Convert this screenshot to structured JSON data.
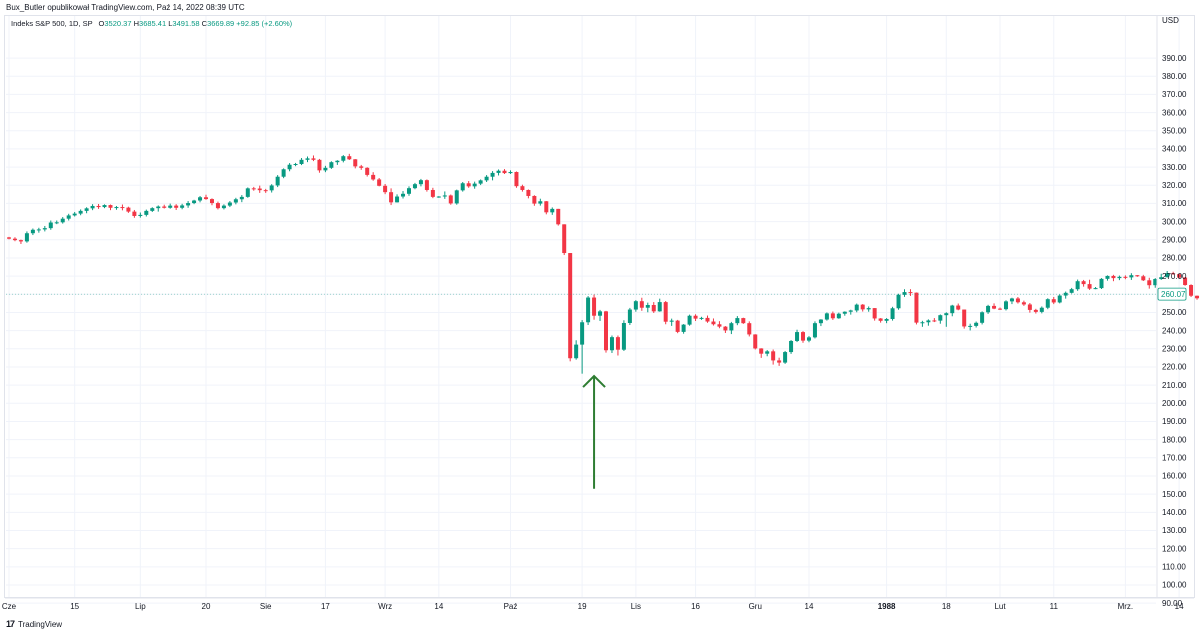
{
  "header": {
    "text": "Bux_Butler opublikował TradingView.com, Paź 14, 2022 08:39 UTC"
  },
  "legend": {
    "symbol": "Indeks S&P 500, 1D, SP",
    "o_label": "O",
    "o_value": "3520.37",
    "h_label": "H",
    "h_value": "3685.41",
    "l_label": "L",
    "l_value": "3491.58",
    "c_label": "C",
    "c_value": "3669.89",
    "change": "+92.85 (+2.60%)"
  },
  "footer": {
    "logo": "17",
    "brand": "TradingView"
  },
  "colors": {
    "up": "#089981",
    "down": "#f23645",
    "arrow": "#2e7d32",
    "grid": "#f0f3fa",
    "text": "#131722"
  },
  "chart_data": {
    "type": "candlestick",
    "y_axis": {
      "unit_label": "USD",
      "range": [
        80,
        395
      ],
      "ticks": [
        "390.00",
        "380.00",
        "370.00",
        "360.00",
        "350.00",
        "340.00",
        "330.00",
        "320.00",
        "310.00",
        "300.00",
        "290.00",
        "280.00",
        "270.00",
        "260.00",
        "250.00",
        "240.00",
        "230.00",
        "220.00",
        "210.00",
        "200.00",
        "190.00",
        "180.00",
        "170.00",
        "160.00",
        "150.00",
        "140.00",
        "130.00",
        "120.00",
        "110.00",
        "100.00",
        "90.00"
      ]
    },
    "x_axis": {
      "labels": [
        {
          "text": "Cze",
          "i": 0,
          "bold": false
        },
        {
          "text": "15",
          "i": 11,
          "bold": false
        },
        {
          "text": "Lip",
          "i": 22,
          "bold": false
        },
        {
          "text": "20",
          "i": 33,
          "bold": false
        },
        {
          "text": "Sie",
          "i": 43,
          "bold": false
        },
        {
          "text": "17",
          "i": 53,
          "bold": false
        },
        {
          "text": "Wrz",
          "i": 63,
          "bold": false
        },
        {
          "text": "14",
          "i": 72,
          "bold": false
        },
        {
          "text": "Paź",
          "i": 84,
          "bold": false
        },
        {
          "text": "19",
          "i": 96,
          "bold": false
        },
        {
          "text": "Lis",
          "i": 105,
          "bold": false
        },
        {
          "text": "16",
          "i": 115,
          "bold": false
        },
        {
          "text": "Gru",
          "i": 125,
          "bold": false
        },
        {
          "text": "14",
          "i": 134,
          "bold": false
        },
        {
          "text": "1988",
          "i": 147,
          "bold": true
        },
        {
          "text": "18",
          "i": 157,
          "bold": false
        },
        {
          "text": "Lut",
          "i": 166,
          "bold": false
        },
        {
          "text": "11",
          "i": 175,
          "bold": false
        },
        {
          "text": "Mrz.",
          "i": 187,
          "bold": false
        },
        {
          "text": "14",
          "i": 196,
          "bold": false
        }
      ]
    },
    "last_price": "260.07",
    "annotation": {
      "type": "arrow-up",
      "index": 98,
      "from_value": 153,
      "to_value": 215
    },
    "candles": [
      [
        291.3,
        291.6,
        290.2,
        290.6
      ],
      [
        290.6,
        291.4,
        289.2,
        289.8
      ],
      [
        289.8,
        290.1,
        287.7,
        289.1
      ],
      [
        289.1,
        294.6,
        288.4,
        293.6
      ],
      [
        293.6,
        296.2,
        292.6,
        295.5
      ],
      [
        295.5,
        296.6,
        293.9,
        295.7
      ],
      [
        295.7,
        297.6,
        294.6,
        296.4
      ],
      [
        296.4,
        300.6,
        295.5,
        299.5
      ],
      [
        299.5,
        300.6,
        298.6,
        299.6
      ],
      [
        299.6,
        302.5,
        298.9,
        301.6
      ],
      [
        301.6,
        304.3,
        300.6,
        303.4
      ],
      [
        303.4,
        305.3,
        302.8,
        304.4
      ],
      [
        304.4,
        306.7,
        303.5,
        305.9
      ],
      [
        305.9,
        307.9,
        304.6,
        307.3
      ],
      [
        307.3,
        309.6,
        306.3,
        308.6
      ],
      [
        308.6,
        309.7,
        307.0,
        308.0
      ],
      [
        308.0,
        309.5,
        307.4,
        309.1
      ],
      [
        309.1,
        309.4,
        306.3,
        307.6
      ],
      [
        307.6,
        308.6,
        306.5,
        308.0
      ],
      [
        308.0,
        309.4,
        306.2,
        307.7
      ],
      [
        307.7,
        308.2,
        304.8,
        305.5
      ],
      [
        305.5,
        306.4,
        302.1,
        303.1
      ],
      [
        303.1,
        305.0,
        302.2,
        303.7
      ],
      [
        303.7,
        306.6,
        302.8,
        305.9
      ],
      [
        305.9,
        307.9,
        305.3,
        307.4
      ],
      [
        307.4,
        308.9,
        305.5,
        308.3
      ],
      [
        308.3,
        309.3,
        307.2,
        307.6
      ],
      [
        307.6,
        309.9,
        307.1,
        308.8
      ],
      [
        308.8,
        309.6,
        306.4,
        307.6
      ],
      [
        307.6,
        309.8,
        306.8,
        308.9
      ],
      [
        308.9,
        311.3,
        307.6,
        310.2
      ],
      [
        310.2,
        312.0,
        309.6,
        311.6
      ],
      [
        311.6,
        314.1,
        310.6,
        313.4
      ],
      [
        313.4,
        314.8,
        312.0,
        312.4
      ],
      [
        312.4,
        312.8,
        309.0,
        310.2
      ],
      [
        310.2,
        311.0,
        306.7,
        307.4
      ],
      [
        307.4,
        309.5,
        306.7,
        308.8
      ],
      [
        308.8,
        311.3,
        308.0,
        310.5
      ],
      [
        310.5,
        313.1,
        309.5,
        312.3
      ],
      [
        312.3,
        314.6,
        310.7,
        313.6
      ],
      [
        313.6,
        318.8,
        313.1,
        318.3
      ],
      [
        318.3,
        319.1,
        317.0,
        318.2
      ],
      [
        318.2,
        319.8,
        315.8,
        317.3
      ],
      [
        317.3,
        318.0,
        315.8,
        317.2
      ],
      [
        317.2,
        320.6,
        316.0,
        319.9
      ],
      [
        319.9,
        325.6,
        319.0,
        324.7
      ],
      [
        324.7,
        329.3,
        323.9,
        328.8
      ],
      [
        328.8,
        332.2,
        327.7,
        331.3
      ],
      [
        331.3,
        332.3,
        330.5,
        331.7
      ],
      [
        331.7,
        335.0,
        331.1,
        334.0
      ],
      [
        334.0,
        335.8,
        332.7,
        334.8
      ],
      [
        334.8,
        336.4,
        333.3,
        334.0
      ],
      [
        334.0,
        334.5,
        326.9,
        328.2
      ],
      [
        328.2,
        330.7,
        327.2,
        329.6
      ],
      [
        329.6,
        333.2,
        329.0,
        332.7
      ],
      [
        332.7,
        333.8,
        331.2,
        333.5
      ],
      [
        333.5,
        336.6,
        332.6,
        336.0
      ],
      [
        336.0,
        337.3,
        333.9,
        334.3
      ],
      [
        334.3,
        334.4,
        329.3,
        330.4
      ],
      [
        330.4,
        331.2,
        328.5,
        329.6
      ],
      [
        329.6,
        329.9,
        324.8,
        325.7
      ],
      [
        325.7,
        327.2,
        322.5,
        323.2
      ],
      [
        323.2,
        324.0,
        319.4,
        319.7
      ],
      [
        319.7,
        320.7,
        315.1,
        316.2
      ],
      [
        316.2,
        318.3,
        309.1,
        310.6
      ],
      [
        310.6,
        315.0,
        310.5,
        313.8
      ],
      [
        313.8,
        316.8,
        312.7,
        315.3
      ],
      [
        315.3,
        319.4,
        314.2,
        318.4
      ],
      [
        318.4,
        321.3,
        317.8,
        320.6
      ],
      [
        320.6,
        323.5,
        319.4,
        322.8
      ],
      [
        322.8,
        323.2,
        316.5,
        317.4
      ],
      [
        317.4,
        318.6,
        312.9,
        313.6
      ],
      [
        313.6,
        314.0,
        313.1,
        313.8
      ],
      [
        313.8,
        316.6,
        312.5,
        314.4
      ],
      [
        314.4,
        314.9,
        309.3,
        310.0
      ],
      [
        310.0,
        317.6,
        309.3,
        317.2
      ],
      [
        317.2,
        321.8,
        316.5,
        321.1
      ],
      [
        321.1,
        322.3,
        318.6,
        319.4
      ],
      [
        319.4,
        322.0,
        318.1,
        320.9
      ],
      [
        320.9,
        323.2,
        320.1,
        322.7
      ],
      [
        322.7,
        325.6,
        321.8,
        324.7
      ],
      [
        324.7,
        327.8,
        322.7,
        326.8
      ],
      [
        326.8,
        328.7,
        325.4,
        328.0
      ],
      [
        328.0,
        328.9,
        326.2,
        326.7
      ],
      [
        326.7,
        328.2,
        326.2,
        327.3
      ],
      [
        327.3,
        327.6,
        318.6,
        319.5
      ],
      [
        319.5,
        320.3,
        316.5,
        317.4
      ],
      [
        317.4,
        317.7,
        312.8,
        314.1
      ],
      [
        314.1,
        314.5,
        308.7,
        309.9
      ],
      [
        309.9,
        312.6,
        308.8,
        311.2
      ],
      [
        311.2,
        311.3,
        304.0,
        305.1
      ],
      [
        305.1,
        307.8,
        303.7,
        307.0
      ],
      [
        307.0,
        307.0,
        297.8,
        298.5
      ],
      [
        298.5,
        298.5,
        281.6,
        282.7
      ],
      [
        282.7,
        282.7,
        223.1,
        224.8
      ],
      [
        224.8,
        234.7,
        224.0,
        232.3
      ],
      [
        232.3,
        245.8,
        216.3,
        244.6
      ],
      [
        244.6,
        259.0,
        243.1,
        258.2
      ],
      [
        258.2,
        259.8,
        246.0,
        248.2
      ],
      [
        248.2,
        251.4,
        245.3,
        250.6
      ],
      [
        250.6,
        250.9,
        227.9,
        229.2
      ],
      [
        229.2,
        237.3,
        227.7,
        236.4
      ],
      [
        236.4,
        237.3,
        226.3,
        229.5
      ],
      [
        229.5,
        245.7,
        228.8,
        244.2
      ],
      [
        244.2,
        252.5,
        243.1,
        251.6
      ],
      [
        251.6,
        256.8,
        250.4,
        256.2
      ],
      [
        256.2,
        258.1,
        250.9,
        252.6
      ],
      [
        252.6,
        255.4,
        250.1,
        254.1
      ],
      [
        254.1,
        255.7,
        249.7,
        250.6
      ],
      [
        250.6,
        257.6,
        250.4,
        255.7
      ],
      [
        255.7,
        256.3,
        243.5,
        244.9
      ],
      [
        244.9,
        246.6,
        242.6,
        245.5
      ],
      [
        245.5,
        245.9,
        238.6,
        239.3
      ],
      [
        239.3,
        243.6,
        238.3,
        243.3
      ],
      [
        243.3,
        248.8,
        242.7,
        248.2
      ],
      [
        248.2,
        249.0,
        245.3,
        246.6
      ],
      [
        246.6,
        247.6,
        245.9,
        247.0
      ],
      [
        247.0,
        248.3,
        244.3,
        245.0
      ],
      [
        245.0,
        246.7,
        242.8,
        243.5
      ],
      [
        243.5,
        245.2,
        241.3,
        242.2
      ],
      [
        242.2,
        242.5,
        238.7,
        240.1
      ],
      [
        240.1,
        244.8,
        238.1,
        244.1
      ],
      [
        244.1,
        248.0,
        243.0,
        246.9
      ],
      [
        246.9,
        247.1,
        243.7,
        244.1
      ],
      [
        244.1,
        245.1,
        236.8,
        237.9
      ],
      [
        237.9,
        238.0,
        229.6,
        230.2
      ],
      [
        230.2,
        230.3,
        225.0,
        227.3
      ],
      [
        227.3,
        229.3,
        225.9,
        228.6
      ],
      [
        228.6,
        229.6,
        221.3,
        223.6
      ],
      [
        223.6,
        225.1,
        220.6,
        222.4
      ],
      [
        222.4,
        228.8,
        221.7,
        228.2
      ],
      [
        228.2,
        234.8,
        227.2,
        234.3
      ],
      [
        234.3,
        240.5,
        233.7,
        239.2
      ],
      [
        239.2,
        239.7,
        233.3,
        234.5
      ],
      [
        234.5,
        237.0,
        233.6,
        236.3
      ],
      [
        236.3,
        245.1,
        235.7,
        244.1
      ],
      [
        244.1,
        246.3,
        242.5,
        246.1
      ],
      [
        246.1,
        250.0,
        245.5,
        249.5
      ],
      [
        249.5,
        250.5,
        245.9,
        246.8
      ],
      [
        246.8,
        249.9,
        246.5,
        249.3
      ],
      [
        249.3,
        250.6,
        248.2,
        250.4
      ],
      [
        250.4,
        251.5,
        248.8,
        251.1
      ],
      [
        251.1,
        254.9,
        250.1,
        254.3
      ],
      [
        254.3,
        254.6,
        250.5,
        251.7
      ],
      [
        251.7,
        253.3,
        250.4,
        252.4
      ],
      [
        252.4,
        252.4,
        245.5,
        246.7
      ],
      [
        246.7,
        246.9,
        244.4,
        245.4
      ],
      [
        245.4,
        246.9,
        244.1,
        246.4
      ],
      [
        246.4,
        253.1,
        245.5,
        252.3
      ],
      [
        252.3,
        260.3,
        251.5,
        259.7
      ],
      [
        259.7,
        262.8,
        258.6,
        261.2
      ],
      [
        261.2,
        262.8,
        259.1,
        260.9
      ],
      [
        260.9,
        261.0,
        243.4,
        244.4
      ],
      [
        244.4,
        245.4,
        242.1,
        244.6
      ],
      [
        244.6,
        246.2,
        242.7,
        245.6
      ],
      [
        245.6,
        246.9,
        244.7,
        245.5
      ],
      [
        245.5,
        248.9,
        243.8,
        248.5
      ],
      [
        248.5,
        250.1,
        242.1,
        249.6
      ],
      [
        249.6,
        254.2,
        247.9,
        253.8
      ],
      [
        253.8,
        254.9,
        251.2,
        251.6
      ],
      [
        251.6,
        251.6,
        241.1,
        242.3
      ],
      [
        242.3,
        243.8,
        240.1,
        242.6
      ],
      [
        242.6,
        245.0,
        241.7,
        244.3
      ],
      [
        244.3,
        250.6,
        243.4,
        250.1
      ],
      [
        250.1,
        254.2,
        249.2,
        253.6
      ],
      [
        253.6,
        255.0,
        251.8,
        252.1
      ],
      [
        252.1,
        252.7,
        251.4,
        251.8
      ],
      [
        251.8,
        256.7,
        251.1,
        256.1
      ],
      [
        256.1,
        258.1,
        254.6,
        257.7
      ],
      [
        257.7,
        258.5,
        254.9,
        255.6
      ],
      [
        255.6,
        256.5,
        253.6,
        254.4
      ],
      [
        254.4,
        255.2,
        249.9,
        251.4
      ],
      [
        251.4,
        252.0,
        249.4,
        250.3
      ],
      [
        250.3,
        253.3,
        249.5,
        252.6
      ],
      [
        252.6,
        257.8,
        251.8,
        257.3
      ],
      [
        257.3,
        258.5,
        254.6,
        255.5
      ],
      [
        255.5,
        259.9,
        255.0,
        259.3
      ],
      [
        259.3,
        261.5,
        257.6,
        260.8
      ],
      [
        260.8,
        263.5,
        260.4,
        262.8
      ],
      [
        262.8,
        268.1,
        261.9,
        267.2
      ],
      [
        267.2,
        267.9,
        264.2,
        265.6
      ],
      [
        265.6,
        268.0,
        262.4,
        263.1
      ],
      [
        263.1,
        264.0,
        262.8,
        263.4
      ],
      [
        263.4,
        268.9,
        262.9,
        268.5
      ],
      [
        268.5,
        270.4,
        267.5,
        270.1
      ],
      [
        270.1,
        270.7,
        267.2,
        268.9
      ],
      [
        268.9,
        270.3,
        267.8,
        269.6
      ],
      [
        269.6,
        270.4,
        268.3,
        269.3
      ],
      [
        269.3,
        271.6,
        267.9,
        270.5
      ],
      [
        270.5,
        270.6,
        269.6,
        269.9
      ],
      [
        269.9,
        270.7,
        267.3,
        267.7
      ],
      [
        267.7,
        269.1,
        263.1,
        265.0
      ],
      [
        265.0,
        268.9,
        263.6,
        268.4
      ],
      [
        268.4,
        271.3,
        267.9,
        269.4
      ],
      [
        269.4,
        272.8,
        269.2,
        271.6
      ],
      [
        271.6,
        272.4,
        270.7,
        271.1
      ],
      [
        271.1,
        271.4,
        268.6,
        269.2
      ],
      [
        269.2,
        269.5,
        264.7,
        265.1
      ],
      [
        265.1,
        265.5,
        258.5,
        259.2
      ],
      [
        259.2,
        259.3,
        257.0,
        257.8
      ],
      [
        257.8,
        260.8,
        256.7,
        260.1
      ]
    ]
  }
}
